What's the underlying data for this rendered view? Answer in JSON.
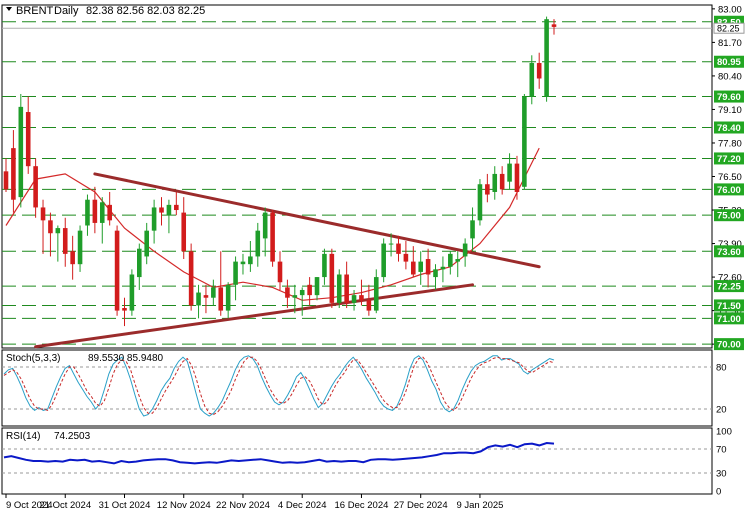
{
  "header": {
    "symbol": "BRENT",
    "timeframe": "Daily",
    "ohlc": "82.38 82.56 82.03 82.25"
  },
  "chart_data": [
    {
      "type": "candlestick",
      "ylim": [
        69.85,
        83.15
      ],
      "y_ticks": [
        "83.00",
        "81.70",
        "80.40",
        "79.10",
        "77.80",
        "76.50",
        "75.20",
        "73.90",
        "72.60",
        "71.30",
        "70.00"
      ],
      "price_levels": [
        "82.50",
        "80.95",
        "79.60",
        "78.40",
        "77.20",
        "76.00",
        "75.00",
        "73.60",
        "72.25",
        "71.50",
        "71.00",
        "70.00"
      ],
      "current_price": "82.25",
      "x_tick_labels": [
        "9 Oct 2024",
        "21 Oct 2024",
        "31 Oct 2024",
        "12 Nov 2024",
        "22 Nov 2024",
        "4 Dec 2024",
        "16 Dec 2024",
        "27 Dec 2024",
        "9 Jan 2025"
      ],
      "x_tick_index": [
        0,
        8,
        16,
        24,
        32,
        40,
        48,
        56,
        64
      ],
      "candles": [
        [
          76.7,
          77.2,
          75.9,
          76.0
        ],
        [
          77.6,
          78.3,
          75.1,
          75.6
        ],
        [
          75.7,
          79.7,
          75.3,
          79.2
        ],
        [
          79.0,
          79.6,
          76.6,
          76.9
        ],
        [
          76.9,
          77.2,
          74.9,
          75.3
        ],
        [
          75.3,
          75.6,
          73.5,
          74.8
        ],
        [
          74.8,
          75.1,
          73.4,
          74.3
        ],
        [
          74.3,
          74.6,
          73.2,
          74.5
        ],
        [
          74.5,
          74.9,
          73.0,
          73.5
        ],
        [
          73.6,
          74.2,
          72.5,
          73.1
        ],
        [
          73.1,
          74.6,
          72.8,
          74.4
        ],
        [
          74.6,
          75.8,
          74.2,
          75.6
        ],
        [
          75.6,
          76.1,
          74.3,
          74.7
        ],
        [
          74.7,
          75.7,
          73.9,
          75.5
        ],
        [
          75.4,
          75.9,
          74.6,
          74.8
        ],
        [
          74.4,
          74.6,
          71.1,
          71.3
        ],
        [
          71.4,
          71.8,
          70.7,
          71.3
        ],
        [
          71.3,
          72.9,
          71.1,
          72.7
        ],
        [
          72.6,
          73.9,
          72.1,
          73.7
        ],
        [
          73.4,
          74.7,
          73.1,
          74.4
        ],
        [
          74.4,
          75.6,
          73.9,
          75.3
        ],
        [
          75.3,
          75.7,
          74.6,
          75.1
        ],
        [
          75.0,
          75.6,
          74.3,
          75.4
        ],
        [
          75.4,
          75.9,
          75.0,
          75.2
        ],
        [
          75.1,
          75.7,
          73.3,
          73.6
        ],
        [
          73.6,
          73.9,
          71.3,
          71.5
        ],
        [
          71.5,
          72.3,
          71.0,
          72.0
        ],
        [
          71.9,
          72.3,
          71.2,
          71.8
        ],
        [
          71.8,
          72.5,
          71.5,
          72.2
        ],
        [
          72.2,
          73.6,
          71.1,
          71.3
        ],
        [
          71.3,
          72.4,
          71.0,
          72.3
        ],
        [
          72.3,
          73.4,
          71.7,
          73.2
        ],
        [
          73.1,
          73.5,
          72.7,
          73.2
        ],
        [
          73.1,
          74.0,
          72.8,
          73.4
        ],
        [
          73.4,
          74.7,
          73.0,
          74.4
        ],
        [
          74.1,
          75.3,
          73.4,
          75.1
        ],
        [
          75.1,
          75.2,
          73.0,
          73.2
        ],
        [
          73.2,
          73.6,
          72.1,
          72.4
        ],
        [
          72.2,
          72.5,
          71.4,
          71.8
        ],
        [
          71.8,
          72.3,
          71.2,
          71.9
        ],
        [
          71.9,
          72.2,
          71.1,
          72.1
        ],
        [
          72.3,
          72.6,
          71.5,
          71.9
        ],
        [
          71.9,
          72.6,
          71.7,
          72.6
        ],
        [
          72.6,
          73.7,
          72.3,
          73.5
        ],
        [
          73.5,
          73.7,
          71.4,
          71.6
        ],
        [
          71.6,
          72.9,
          71.4,
          72.7
        ],
        [
          72.7,
          73.2,
          71.4,
          71.6
        ],
        [
          71.6,
          72.1,
          71.3,
          71.9
        ],
        [
          71.9,
          72.5,
          71.5,
          71.7
        ],
        [
          71.7,
          72.3,
          71.1,
          71.3
        ],
        [
          71.3,
          72.9,
          71.2,
          72.6
        ],
        [
          72.6,
          74.1,
          72.4,
          73.9
        ],
        [
          73.9,
          74.3,
          73.4,
          73.9
        ],
        [
          73.9,
          74.2,
          73.2,
          73.5
        ],
        [
          73.5,
          74.0,
          72.9,
          73.2
        ],
        [
          73.2,
          73.8,
          72.6,
          72.7
        ],
        [
          72.8,
          73.6,
          72.3,
          73.2
        ],
        [
          73.3,
          73.7,
          72.2,
          72.7
        ],
        [
          72.6,
          73.1,
          72.1,
          72.9
        ],
        [
          72.9,
          73.4,
          72.4,
          73.0
        ],
        [
          73.0,
          73.6,
          72.7,
          73.5
        ],
        [
          73.2,
          73.6,
          72.6,
          73.3
        ],
        [
          73.4,
          74.1,
          73.0,
          73.9
        ],
        [
          74.1,
          75.3,
          73.6,
          74.8
        ],
        [
          74.8,
          76.4,
          74.6,
          76.2
        ],
        [
          76.2,
          76.6,
          75.5,
          75.8
        ],
        [
          75.9,
          76.9,
          75.6,
          76.6
        ],
        [
          76.6,
          76.9,
          75.8,
          76.0
        ],
        [
          76.3,
          77.4,
          76.0,
          77.0
        ],
        [
          77.0,
          77.3,
          75.6,
          75.9
        ],
        [
          76.1,
          79.7,
          76.0,
          79.6
        ],
        [
          79.6,
          81.2,
          79.3,
          80.9
        ],
        [
          80.9,
          81.3,
          79.9,
          80.3
        ],
        [
          79.6,
          82.7,
          79.4,
          82.6
        ],
        [
          82.4,
          82.6,
          82.0,
          82.3
        ]
      ],
      "moving_average": [
        [
          0,
          74.6
        ],
        [
          4,
          76.4
        ],
        [
          8,
          76.6
        ],
        [
          12,
          75.9
        ],
        [
          16,
          74.5
        ],
        [
          20,
          73.6
        ],
        [
          24,
          72.8
        ],
        [
          28,
          72.2
        ],
        [
          32,
          72.4
        ],
        [
          36,
          72.2
        ],
        [
          40,
          71.7
        ],
        [
          44,
          71.8
        ],
        [
          48,
          72.0
        ],
        [
          52,
          72.3
        ],
        [
          56,
          72.7
        ],
        [
          60,
          73.0
        ],
        [
          64,
          73.9
        ],
        [
          68,
          75.3
        ],
        [
          72,
          77.6
        ]
      ],
      "trendlines": [
        {
          "from": [
            12,
            76.6
          ],
          "to": [
            72,
            73.0
          ]
        },
        {
          "from": [
            4,
            69.9
          ],
          "to": [
            63,
            72.3
          ]
        }
      ]
    },
    {
      "type": "line",
      "title": "Stoch(5,3,3)",
      "readout": "89.5530 85.9480",
      "ylim": [
        0,
        100
      ],
      "y_ticks": [
        "80",
        "20"
      ],
      "levels": [
        80,
        20
      ],
      "series": [
        {
          "color": "#2aa0c8",
          "values": [
            70,
            76,
            78,
            66,
            52,
            36,
            24,
            18,
            22,
            18,
            20,
            36,
            52,
            66,
            78,
            82,
            70,
            58,
            48,
            38,
            30,
            20,
            28,
            48,
            70,
            84,
            90,
            94,
            80,
            62,
            40,
            20,
            10,
            12,
            20,
            32,
            46,
            56,
            64,
            78,
            88,
            94,
            88,
            66,
            42,
            20,
            14,
            10,
            14,
            22,
            32,
            46,
            60,
            76,
            88,
            94,
            96,
            92,
            82,
            66,
            52,
            40,
            30,
            26,
            30,
            40,
            52,
            66,
            72,
            62,
            48,
            34,
            22,
            28,
            40,
            52,
            62,
            70,
            80,
            88,
            94,
            86,
            76,
            64,
            54,
            44,
            32,
            24,
            20,
            18,
            24,
            38,
            56,
            78,
            92,
            96,
            90,
            76,
            60,
            48,
            30,
            20,
            16,
            20,
            32,
            48,
            62,
            74,
            82,
            86,
            88,
            92,
            96,
            96,
            90,
            92,
            92,
            88,
            84,
            74,
            70,
            76,
            80,
            84,
            88,
            92,
            90
          ]
        },
        {
          "color": "#c82a2a",
          "values": [
            68,
            72,
            76,
            72,
            62,
            48,
            34,
            24,
            20,
            20,
            18,
            26,
            40,
            56,
            70,
            80,
            80,
            70,
            58,
            46,
            38,
            28,
            24,
            32,
            50,
            70,
            84,
            90,
            88,
            76,
            56,
            38,
            22,
            14,
            14,
            22,
            34,
            46,
            56,
            66,
            78,
            88,
            92,
            82,
            64,
            42,
            24,
            14,
            12,
            16,
            24,
            34,
            46,
            62,
            76,
            88,
            94,
            94,
            88,
            76,
            62,
            48,
            38,
            30,
            28,
            32,
            42,
            54,
            64,
            66,
            60,
            48,
            34,
            26,
            30,
            42,
            54,
            64,
            72,
            82,
            90,
            90,
            82,
            72,
            62,
            52,
            42,
            32,
            26,
            22,
            22,
            30,
            44,
            64,
            82,
            92,
            94,
            86,
            72,
            58,
            44,
            30,
            22,
            18,
            24,
            36,
            50,
            64,
            74,
            82,
            86,
            88,
            92,
            94,
            92,
            92,
            90,
            88,
            86,
            80,
            74,
            72,
            76,
            80,
            84,
            88,
            86
          ]
        }
      ]
    },
    {
      "type": "line",
      "title": "RSI(14)",
      "readout": "74.2503",
      "ylim": [
        0,
        100
      ],
      "y_ticks": [
        "100",
        "70",
        "30",
        "0"
      ],
      "levels": [
        70,
        30
      ],
      "series": [
        {
          "color": "#0b19c8",
          "values": [
            56,
            58,
            55,
            52,
            50,
            50,
            49,
            50,
            49,
            52,
            51,
            52,
            49,
            50,
            48,
            46,
            50,
            48,
            49,
            51,
            52,
            53,
            53,
            51,
            48,
            47,
            46,
            47,
            48,
            47,
            49,
            51,
            50,
            51,
            52,
            53,
            51,
            49,
            47,
            48,
            47,
            48,
            50,
            52,
            49,
            50,
            49,
            50,
            50,
            48,
            52,
            53,
            53,
            52,
            53,
            54,
            55,
            56,
            58,
            60,
            63,
            63,
            64,
            64,
            63,
            66,
            73,
            76,
            74,
            77,
            73,
            78,
            79,
            76,
            80,
            79
          ]
        }
      ]
    }
  ]
}
